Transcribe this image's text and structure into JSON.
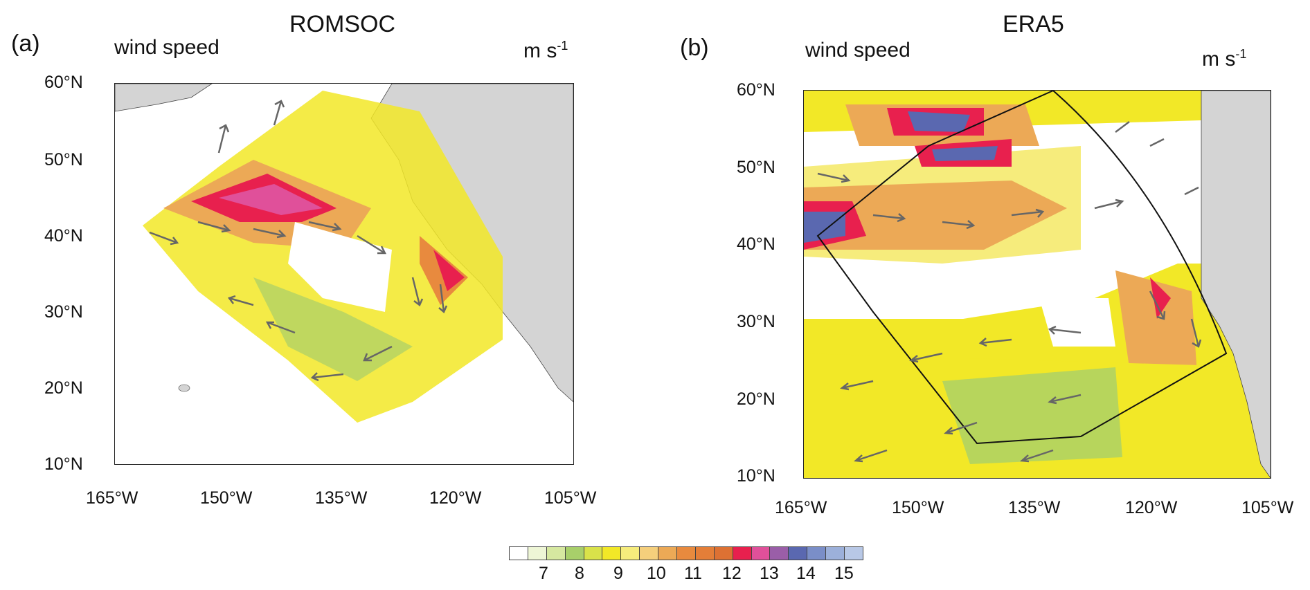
{
  "panels": [
    {
      "letter": "(a)",
      "title": "ROMSOC",
      "variable": "wind speed",
      "units": "m s",
      "units_exp": "-1",
      "lat_labels": [
        "60°N",
        "50°N",
        "40°N",
        "30°N",
        "20°N",
        "10°N"
      ],
      "lon_labels": [
        "165°W",
        "150°W",
        "135°W",
        "120°W",
        "105°W"
      ]
    },
    {
      "letter": "(b)",
      "title": "ERA5",
      "variable": "wind speed",
      "units": "m s",
      "units_exp": "-1",
      "lat_labels": [
        "60°N",
        "50°N",
        "40°N",
        "30°N",
        "20°N",
        "10°N"
      ],
      "lon_labels": [
        "165°W",
        "150°W",
        "135°W",
        "120°W",
        "105°W"
      ]
    }
  ],
  "colorbar": {
    "colors": [
      "#ffffff",
      "#eef6d6",
      "#d6e8a0",
      "#a8cf6a",
      "#d9e24a",
      "#f2e827",
      "#f6ec7c",
      "#f5cf7c",
      "#eca956",
      "#e88a3e",
      "#e47e38",
      "#dd7133",
      "#e8204e",
      "#e0509a",
      "#9a5ea8",
      "#5a68b0",
      "#7a8ec8",
      "#9cb0da",
      "#b8c8e6"
    ],
    "labels": [
      "7",
      "8",
      "9",
      "10",
      "11",
      "12",
      "13",
      "14",
      "15"
    ]
  }
}
